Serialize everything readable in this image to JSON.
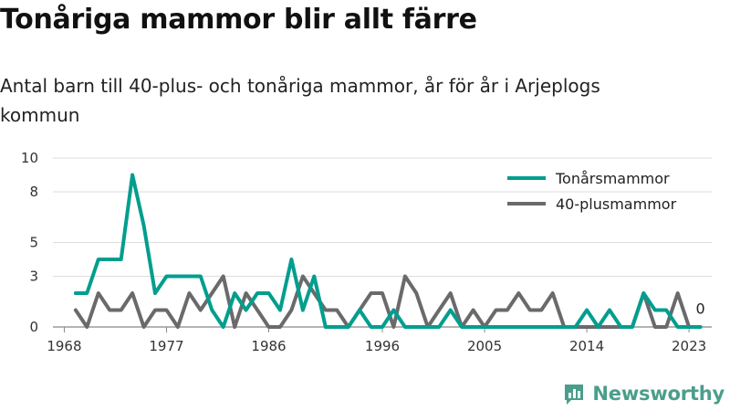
{
  "title": "Tonåriga mammor blir allt färre",
  "subtitle": "Antal barn till 40-plus- och tonåriga mammor, år för år i Arjeplogs kommun",
  "brand": "Newsworthy",
  "chart_data": {
    "type": "line",
    "y_ticks": [
      0,
      3,
      5,
      8,
      10
    ],
    "x_ticks": [
      1968,
      1977,
      1986,
      1996,
      2005,
      2014,
      2023
    ],
    "ylim": [
      0,
      10
    ],
    "xlim": [
      1967,
      2025
    ],
    "grid": true,
    "legend_position": "top-right",
    "x": [
      1969,
      1970,
      1971,
      1972,
      1973,
      1974,
      1975,
      1976,
      1977,
      1978,
      1979,
      1980,
      1981,
      1982,
      1983,
      1984,
      1985,
      1986,
      1987,
      1988,
      1989,
      1990,
      1991,
      1992,
      1993,
      1994,
      1995,
      1996,
      1997,
      1998,
      1999,
      2000,
      2001,
      2002,
      2003,
      2004,
      2005,
      2006,
      2007,
      2008,
      2009,
      2010,
      2011,
      2012,
      2013,
      2014,
      2015,
      2016,
      2017,
      2018,
      2019,
      2020,
      2021,
      2022,
      2023,
      2024
    ],
    "series": [
      {
        "name": "Tonårsmammor",
        "color": "#009e8e",
        "values": [
          2,
          2,
          4,
          4,
          4,
          9,
          6,
          2,
          3,
          3,
          3,
          3,
          1,
          0,
          2,
          1,
          2,
          2,
          1,
          4,
          1,
          3,
          0,
          0,
          0,
          1,
          0,
          0,
          1,
          0,
          0,
          0,
          0,
          1,
          0,
          0,
          0,
          0,
          0,
          0,
          0,
          0,
          0,
          0,
          0,
          1,
          0,
          1,
          0,
          0,
          2,
          1,
          1,
          0,
          0,
          0
        ]
      },
      {
        "name": "40-plusmammor",
        "color": "#6a6a6d",
        "values": [
          1,
          0,
          2,
          1,
          1,
          2,
          0,
          1,
          1,
          0,
          2,
          1,
          2,
          3,
          0,
          2,
          1,
          0,
          0,
          1,
          3,
          2,
          1,
          1,
          0,
          1,
          2,
          2,
          0,
          3,
          2,
          0,
          1,
          2,
          0,
          1,
          0,
          1,
          1,
          2,
          1,
          1,
          2,
          0,
          0,
          0,
          0,
          0,
          0,
          0,
          2,
          0,
          0,
          2,
          0,
          null
        ]
      }
    ],
    "end_label": "0"
  },
  "colors": {
    "grid": "#dddddd",
    "baseline": "#888888",
    "brand": "#4a9e8c"
  },
  "icons": {
    "brand": "bar-chart-logo-icon"
  }
}
